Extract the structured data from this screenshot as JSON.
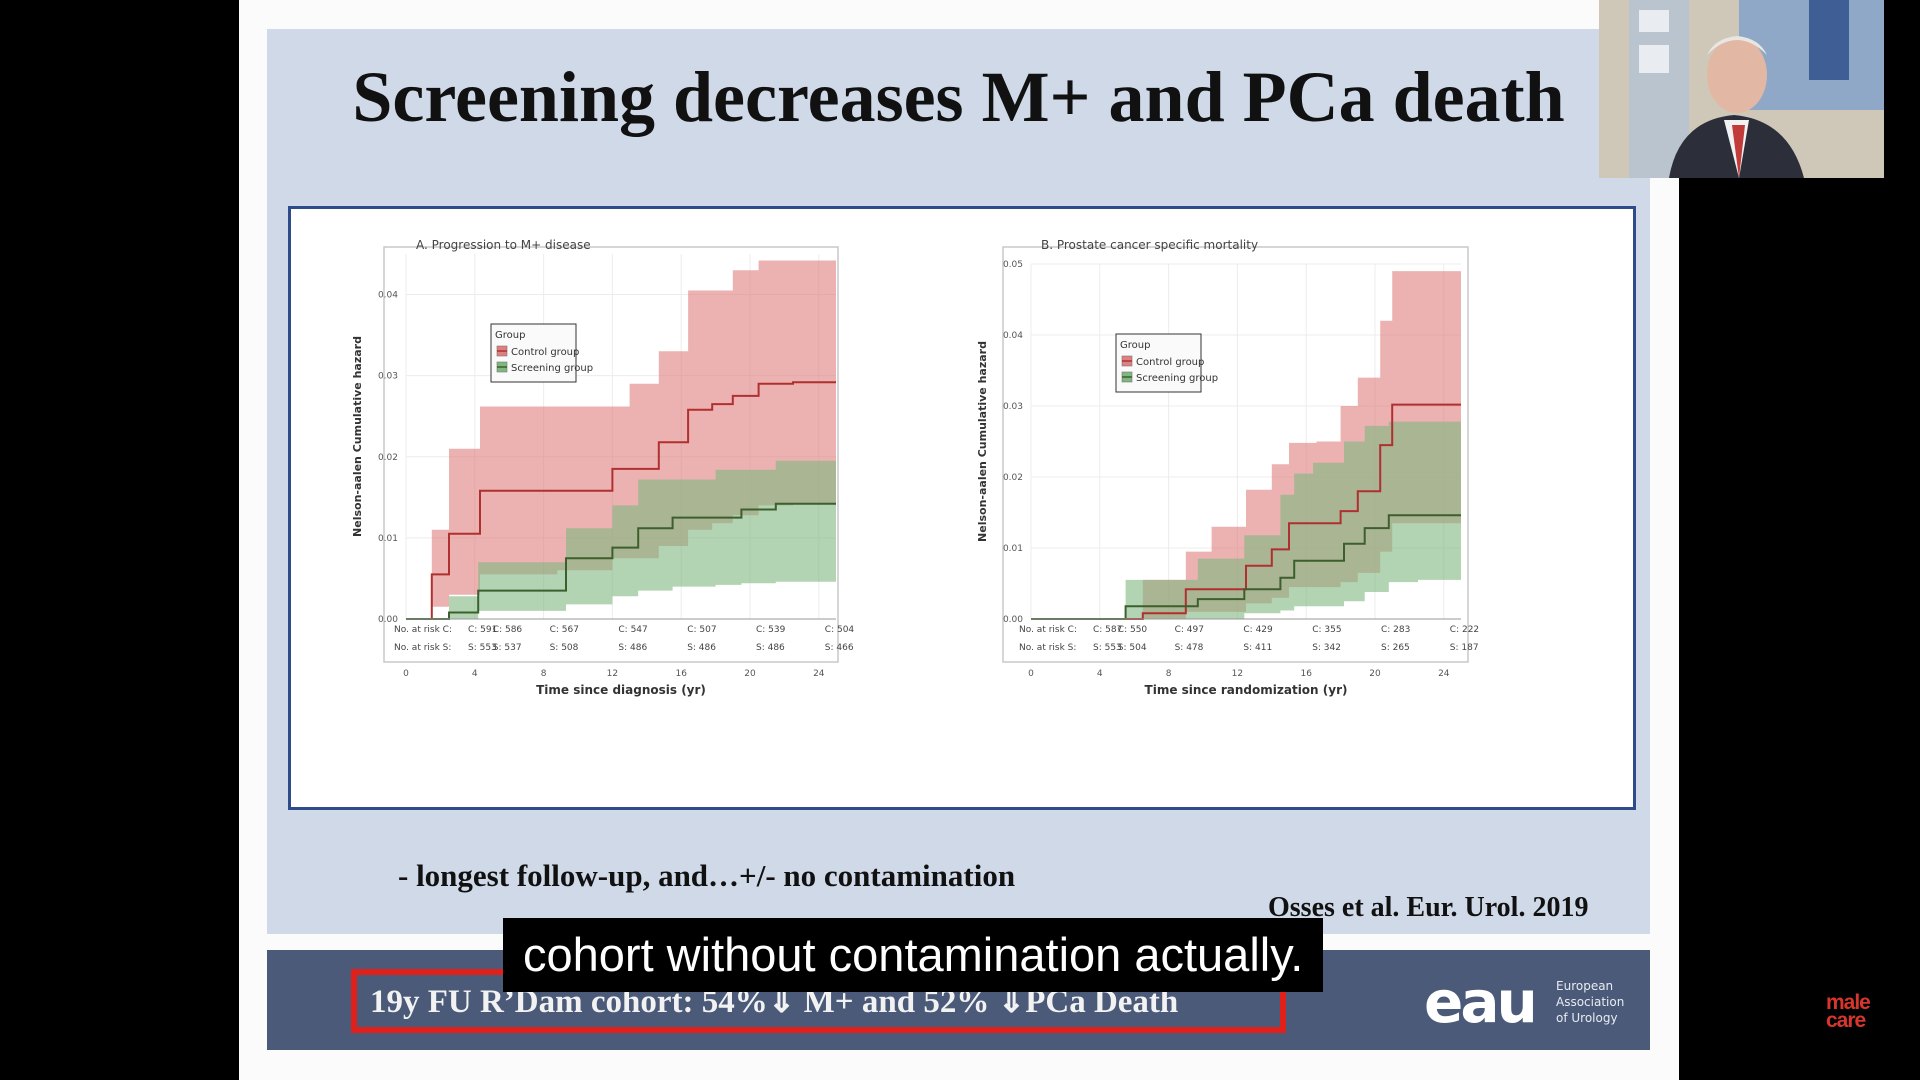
{
  "slide": {
    "title": "Screening decreases M+ and PCa death",
    "bullet": "- longest follow-up, and…+/- no contamination",
    "citation": "Osses et al. Eur. Urol. 2019",
    "footer_text": "19y FU  R’Dam cohort: 54%⇓ M+ and  52% ⇓PCa Death",
    "subtitle": "cohort without contamination actually.",
    "logo_text": "eau",
    "logo_name_lines": [
      "European",
      "Association",
      "of Urology"
    ],
    "watermark_lines": [
      "male",
      "care"
    ]
  },
  "chart_data": [
    {
      "type": "area",
      "title": "A. Progression to M+ disease",
      "xlabel": "Time since diagnosis (yr)",
      "ylabel": "Nelson-aalen Cumulative hazard",
      "xlim": [
        0,
        25
      ],
      "ylim": [
        0,
        0.045
      ],
      "x_ticks": [
        0,
        4,
        8,
        12,
        16,
        20,
        24
      ],
      "y_ticks": [
        0.0,
        0.01,
        0.02,
        0.03,
        0.04
      ],
      "legend": {
        "title": "Group",
        "placement": "top-left",
        "entries": [
          "Control group",
          "Screening group"
        ]
      },
      "colors": {
        "control": "#e07f7f",
        "screening": "#7fb77f"
      },
      "series": [
        {
          "name": "Control group",
          "x": [
            0,
            1.5,
            2.5,
            4.3,
            6.5,
            8.8,
            12,
            13,
            14.7,
            16.4,
            17.8,
            19,
            20.5,
            22.5,
            25
          ],
          "y": [
            0,
            0.0055,
            0.0105,
            0.0158,
            0.0158,
            0.0158,
            0.0185,
            0.0185,
            0.0218,
            0.0258,
            0.0265,
            0.0275,
            0.029,
            0.0292,
            0.0292
          ],
          "lower": [
            0,
            0.0015,
            0.003,
            0.0055,
            0.0055,
            0.006,
            0.0075,
            0.0075,
            0.009,
            0.011,
            0.0118,
            0.0128,
            0.014,
            0.0142,
            0.0142
          ],
          "upper": [
            0,
            0.011,
            0.021,
            0.0262,
            0.0262,
            0.0262,
            0.0262,
            0.029,
            0.033,
            0.0405,
            0.0405,
            0.043,
            0.0442,
            0.0442,
            0.0442
          ]
        },
        {
          "name": "Screening group",
          "x": [
            0,
            2.5,
            4.2,
            8,
            9.3,
            12,
            13.5,
            15.5,
            18,
            19.5,
            21.5,
            24,
            25
          ],
          "y": [
            0,
            0.0008,
            0.0035,
            0.0035,
            0.0075,
            0.0088,
            0.0112,
            0.0125,
            0.0125,
            0.0135,
            0.0142,
            0.0142,
            0.0142
          ],
          "lower": [
            0,
            0,
            0.001,
            0.001,
            0.0018,
            0.0028,
            0.0035,
            0.004,
            0.0042,
            0.0044,
            0.0046,
            0.0046,
            0.0046
          ],
          "upper": [
            0,
            0.0028,
            0.007,
            0.007,
            0.0112,
            0.014,
            0.0172,
            0.0172,
            0.0184,
            0.0184,
            0.0195,
            0.0195,
            0.0195
          ]
        }
      ],
      "risk_table": {
        "labels": [
          "No. at risk C:",
          "No. at risk S:"
        ],
        "control": [
          "591",
          "586",
          "567",
          "547",
          "507",
          "539",
          "504"
        ],
        "screening": [
          "553",
          "537",
          "508",
          "486",
          "486",
          "486",
          "466"
        ]
      }
    },
    {
      "type": "area",
      "title": "B. Prostate cancer specific mortality",
      "xlabel": "Time since randomization (yr)",
      "ylabel": "Nelson-aalen Cumulative hazard",
      "xlim": [
        0,
        25
      ],
      "ylim": [
        0,
        0.05
      ],
      "x_ticks": [
        0,
        4,
        8,
        12,
        16,
        20,
        24
      ],
      "y_ticks": [
        0.0,
        0.01,
        0.02,
        0.03,
        0.04,
        0.05
      ],
      "legend": {
        "title": "Group",
        "placement": "top-left",
        "entries": [
          "Control group",
          "Screening group"
        ]
      },
      "colors": {
        "control": "#e07f7f",
        "screening": "#7fb77f"
      },
      "series": [
        {
          "name": "Control group",
          "x": [
            0,
            6.5,
            9,
            10.5,
            12.5,
            14,
            15,
            16.6,
            18,
            19,
            20.3,
            21,
            24,
            25
          ],
          "y": [
            0,
            0.0008,
            0.0042,
            0.0042,
            0.0075,
            0.0098,
            0.0135,
            0.0135,
            0.0152,
            0.018,
            0.0245,
            0.0302,
            0.0302,
            0.0302
          ],
          "lower": [
            0,
            0,
            0.001,
            0.001,
            0.0022,
            0.003,
            0.0045,
            0.0045,
            0.0052,
            0.0065,
            0.0095,
            0.0135,
            0.0135,
            0.0135
          ],
          "upper": [
            0,
            0.0055,
            0.0095,
            0.013,
            0.0182,
            0.0218,
            0.0248,
            0.025,
            0.03,
            0.034,
            0.042,
            0.049,
            0.049,
            0.049
          ]
        },
        {
          "name": "Screening group",
          "x": [
            0,
            5.5,
            8,
            9.7,
            12.4,
            14.5,
            15.3,
            16.4,
            18.2,
            19.4,
            20.8,
            22.5,
            24,
            25
          ],
          "y": [
            0,
            0.0018,
            0.0018,
            0.0028,
            0.0042,
            0.0058,
            0.0082,
            0.0082,
            0.0106,
            0.0128,
            0.0146,
            0.0146,
            0.0146,
            0.0146
          ],
          "lower": [
            0,
            0,
            0,
            0,
            0.0008,
            0.0012,
            0.0018,
            0.0018,
            0.0025,
            0.0038,
            0.0052,
            0.0055,
            0.0055,
            0.0055
          ],
          "upper": [
            0,
            0.0055,
            0.0055,
            0.0085,
            0.0118,
            0.0175,
            0.0205,
            0.022,
            0.025,
            0.0272,
            0.0278,
            0.0278,
            0.0278,
            0.0278
          ]
        }
      ],
      "risk_table": {
        "labels": [
          "No. at risk C:",
          "No. at risk S:"
        ],
        "control": [
          "587",
          "550",
          "497",
          "429",
          "355",
          "283",
          "222"
        ],
        "screening": [
          "553",
          "504",
          "478",
          "411",
          "342",
          "265",
          "187"
        ]
      }
    }
  ]
}
